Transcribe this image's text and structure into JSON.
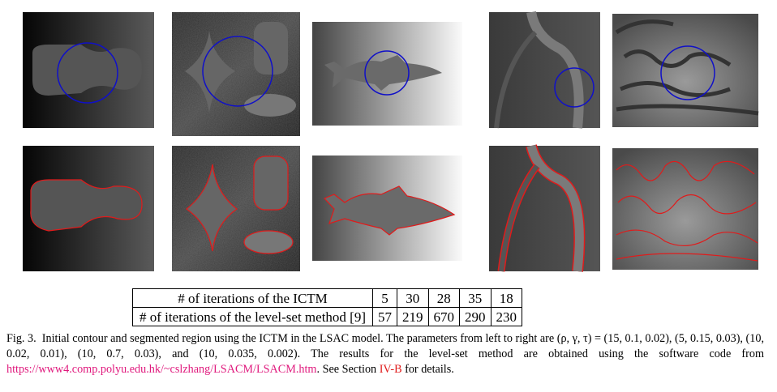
{
  "table": {
    "rows": [
      [
        "# of iterations of the ICTM",
        5,
        30,
        28,
        35,
        18
      ],
      [
        "# of iterations of the level-set method [9]",
        57,
        219,
        670,
        290,
        230
      ]
    ]
  },
  "caption": {
    "label": "Fig. 3.",
    "text_1": "Initial contour and segmented region using the ICTM in the LSAC model. The parameters from left to right are (ρ, γ, τ) = (15, 0.1, 0.02), (5, 0.15, 0.03), (10, 0.02, 0.01), (10, 0.7, 0.03), and (10, 0.035, 0.002). The results for the level-set method are obtained using the software code from",
    "link": "https://www4.comp.polyu.edu.hk/~cslzhang/LSACM/LSACM.htm",
    "text_2": ". See Section",
    "section_ref": "IV-B",
    "text_3": "for details."
  }
}
